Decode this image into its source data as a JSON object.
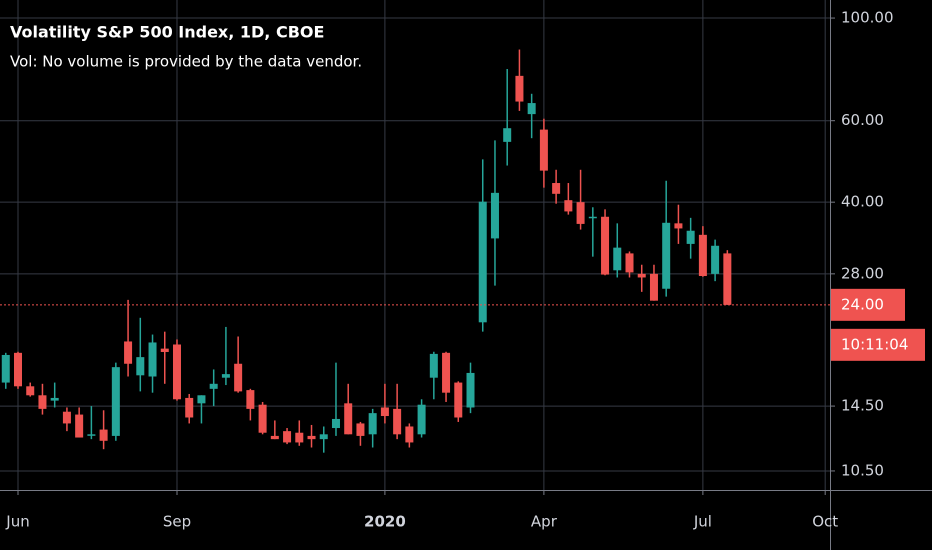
{
  "chart_data": {
    "type": "candlestick",
    "title": "Volatility S&P 500 Index, 1D, CBOE",
    "subtitle": "Vol: No volume is provided by the data vendor.",
    "categories": [
      null,
      "Jun",
      null,
      null,
      null,
      null,
      null,
      null,
      null,
      null,
      null,
      null,
      null,
      null,
      "Sep",
      null,
      null,
      null,
      null,
      null,
      null,
      null,
      null,
      null,
      null,
      null,
      null,
      null,
      null,
      null,
      null,
      "2020",
      null,
      null,
      null,
      null,
      null,
      null,
      null,
      null,
      null,
      null,
      null,
      null,
      "Apr",
      null,
      null,
      null,
      null,
      null,
      null,
      null,
      null,
      null,
      null,
      null,
      null,
      "Jul",
      null,
      null,
      null,
      null,
      null,
      null,
      null,
      null,
      null,
      "Oct"
    ],
    "open": [
      16.3,
      18.9,
      16,
      15.3,
      14.9,
      14.1,
      13.9,
      12.6,
      12.9,
      12.5,
      20,
      16.9,
      16.8,
      19.3,
      19.7,
      15.1,
      14.7,
      15.8,
      16.7,
      17.9,
      15.7,
      14.6,
      12.5,
      12.8,
      12.7,
      12.5,
      12.3,
      13,
      14.7,
      13.3,
      12.6,
      14.4,
      14.3,
      13.1,
      12.6,
      16.7,
      18.9,
      16.3,
      14.4,
      22,
      33.4,
      54,
      75,
      62,
      57.4,
      44,
      40.4,
      40,
      37.2,
      37.2,
      28.5,
      31,
      28,
      28,
      26,
      36,
      32.5,
      34,
      28,
      31,
      null,
      null,
      null,
      null,
      null,
      null,
      null,
      null
    ],
    "high": [
      18.9,
      19,
      16.3,
      16.2,
      16.3,
      14.4,
      14.4,
      14.5,
      14.2,
      18,
      24.6,
      22.5,
      20.7,
      21,
      20.2,
      15.4,
      15.3,
      17.4,
      21.5,
      20.5,
      15.8,
      14.8,
      13.5,
      13,
      13.5,
      13.2,
      13.1,
      18,
      16.2,
      13.4,
      14.3,
      16.2,
      16.2,
      13.3,
      15,
      19,
      19,
      16.4,
      18,
      49.5,
      54.4,
      77.6,
      85.5,
      68.6,
      60.6,
      47,
      44,
      47,
      39,
      38.6,
      36,
      31.3,
      29.3,
      29.3,
      44.5,
      39.5,
      37,
      35.5,
      33.2,
      31.5,
      null,
      null,
      null,
      null,
      null,
      null,
      null,
      null
    ],
    "low": [
      15.8,
      15.8,
      15.2,
      13.9,
      14.4,
      12.8,
      12.4,
      12.3,
      11.7,
      12.2,
      16.8,
      15.6,
      15.5,
      16.2,
      14.9,
      13.3,
      13.3,
      14.5,
      16.1,
      15.5,
      13.5,
      12.6,
      12.3,
      12,
      11.9,
      11.8,
      11.5,
      12.5,
      12.6,
      11.9,
      11.8,
      13.3,
      12.3,
      11.8,
      12.4,
      15,
      14.8,
      13.4,
      14,
      21,
      26.4,
      48,
      63,
      55,
      43,
      39.7,
      37.6,
      34.9,
      30.5,
      27.8,
      27.5,
      27.5,
      25.6,
      24.5,
      25,
      32.5,
      30.2,
      27.6,
      27,
      24,
      null,
      null,
      null,
      null,
      null,
      null,
      null,
      null
    ],
    "close": [
      18.7,
      16,
      15.3,
      14.3,
      15.1,
      13.3,
      12.4,
      12.6,
      12.2,
      17.6,
      17.9,
      18.5,
      19.9,
      18.98,
      15,
      13.7,
      15.3,
      16.2,
      17,
      15.6,
      14.3,
      12.7,
      12.3,
      12.1,
      12.1,
      12.3,
      12.6,
      13.6,
      12.6,
      12.5,
      14,
      13.8,
      12.6,
      12.1,
      14.6,
      18.8,
      15.5,
      13.7,
      17.1,
      40.1,
      41.9,
      57.8,
      66,
      65.5,
      46.8,
      41.7,
      38.2,
      35.9,
      37.2,
      27.9,
      31.9,
      28.2,
      27.5,
      24.5,
      36.1,
      35.1,
      34.7,
      27.7,
      32.2,
      24,
      null,
      null,
      null,
      null,
      null,
      null,
      null,
      null
    ],
    "up_color": "#26a69a",
    "down_color": "#ef5350",
    "log_scale": true,
    "grid": true,
    "ylim": [
      9.55,
      109.4
    ],
    "yticks": [
      {
        "value": 100,
        "label": "100.00"
      },
      {
        "value": 60,
        "label": "60.00"
      },
      {
        "value": 40,
        "label": "40.00"
      },
      {
        "value": 28,
        "label": "28.00"
      },
      {
        "value": 14.5,
        "label": "14.50"
      },
      {
        "value": 10.5,
        "label": "10.50"
      }
    ],
    "last_price": {
      "value": 24,
      "label": "24.00"
    },
    "countdown": "10:11:04"
  }
}
